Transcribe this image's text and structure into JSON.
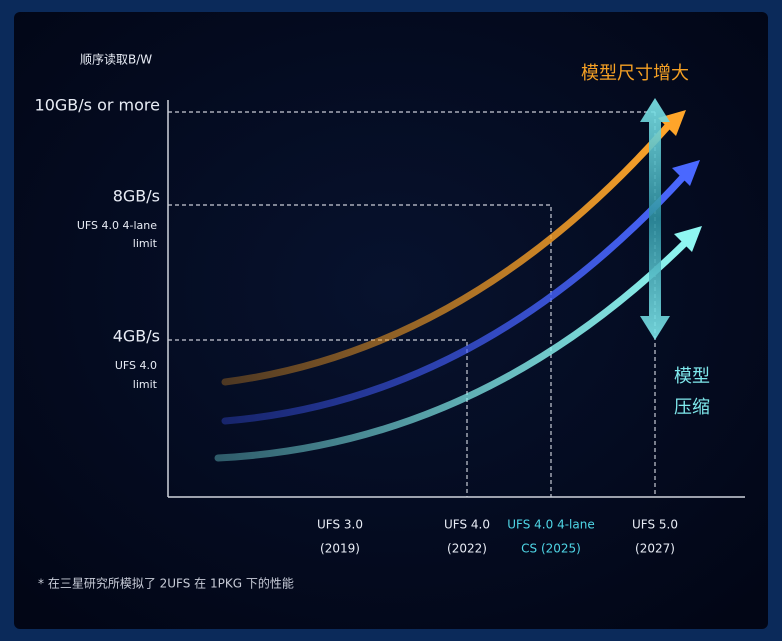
{
  "y_axis_title": "顺序读取B/W",
  "y_levels": [
    {
      "label": "10GB/s or more"
    },
    {
      "label": "8GB/s",
      "note": [
        "UFS 4.0 4-lane",
        "limit"
      ]
    },
    {
      "label": "4GB/s",
      "note": [
        "UFS 4.0",
        "limit"
      ]
    }
  ],
  "x_labels": [
    {
      "lines": [
        "UFS 3.0",
        "(2019)"
      ]
    },
    {
      "lines": [
        "UFS 4.0",
        "(2022)"
      ]
    },
    {
      "lines": [
        "UFS 4.0 4-lane",
        "CS (2025)"
      ]
    },
    {
      "lines": [
        "UFS 5.0",
        "(2027)"
      ]
    }
  ],
  "arrow_up_label": "模型尺寸增大",
  "arrow_down_label": [
    "模型",
    "压缩"
  ],
  "footnote": "* 在三星研究所模拟了 2UFS 在 1PKG 下的性能"
}
